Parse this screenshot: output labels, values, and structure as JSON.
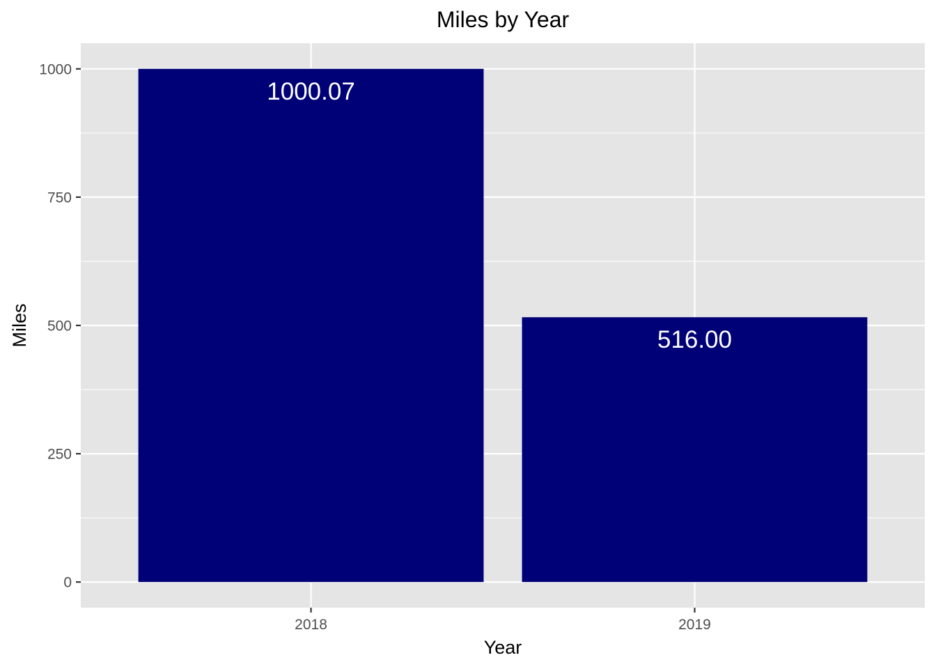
{
  "chart_data": {
    "type": "bar",
    "title": "Miles by Year",
    "xlabel": "Year",
    "ylabel": "Miles",
    "categories": [
      "2018",
      "2019"
    ],
    "values": [
      1000.07,
      516.0
    ],
    "value_labels": [
      "1000.07",
      "516.00"
    ],
    "yticks": [
      0,
      250,
      500,
      750,
      1000
    ],
    "ytick_labels": [
      "0",
      "250",
      "500",
      "750",
      "1000"
    ],
    "ylim": [
      -50,
      1050
    ],
    "grid": true,
    "legend": "none",
    "colors": {
      "bar": "#000077",
      "panel": "#e5e5e5",
      "grid": "#ffffff",
      "data_label": "#ffffff"
    }
  }
}
